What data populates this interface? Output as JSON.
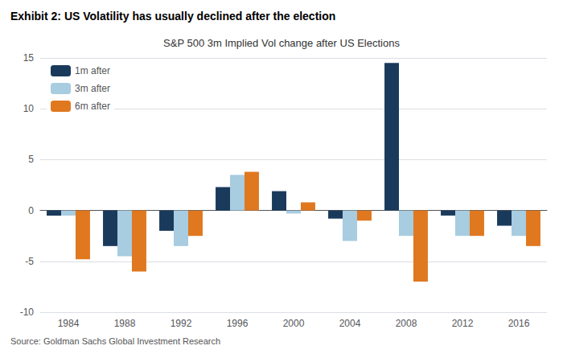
{
  "chart_data": {
    "type": "bar",
    "title": "Exhibit 2: US Volatility has usually declined after the election",
    "subtitle": "S&P 500 3m Implied Vol change after US Elections",
    "annotations": [
      "Source: Goldman Sachs Global Investment Research"
    ],
    "categories": [
      "1984",
      "1988",
      "1992",
      "1996",
      "2000",
      "2004",
      "2008",
      "2012",
      "2016"
    ],
    "series": [
      {
        "name": "1m after",
        "color": "#1a3a5c",
        "values": [
          -0.5,
          -3.5,
          -2.0,
          2.3,
          1.9,
          -0.8,
          14.5,
          -0.5,
          -1.5
        ]
      },
      {
        "name": "3m after",
        "color": "#a8cce0",
        "values": [
          -0.5,
          -4.5,
          -3.5,
          3.5,
          -0.3,
          -3.0,
          -2.5,
          -2.5,
          -2.5
        ]
      },
      {
        "name": "6m after",
        "color": "#e07820",
        "values": [
          -4.8,
          -6.0,
          -2.5,
          3.8,
          0.8,
          -1.0,
          -7.0,
          -2.5,
          -3.5
        ]
      }
    ],
    "ylim": [
      -10,
      15
    ],
    "yticks": [
      -10,
      -5,
      0,
      5,
      10,
      15
    ],
    "grid": true,
    "legend": "upper left"
  }
}
